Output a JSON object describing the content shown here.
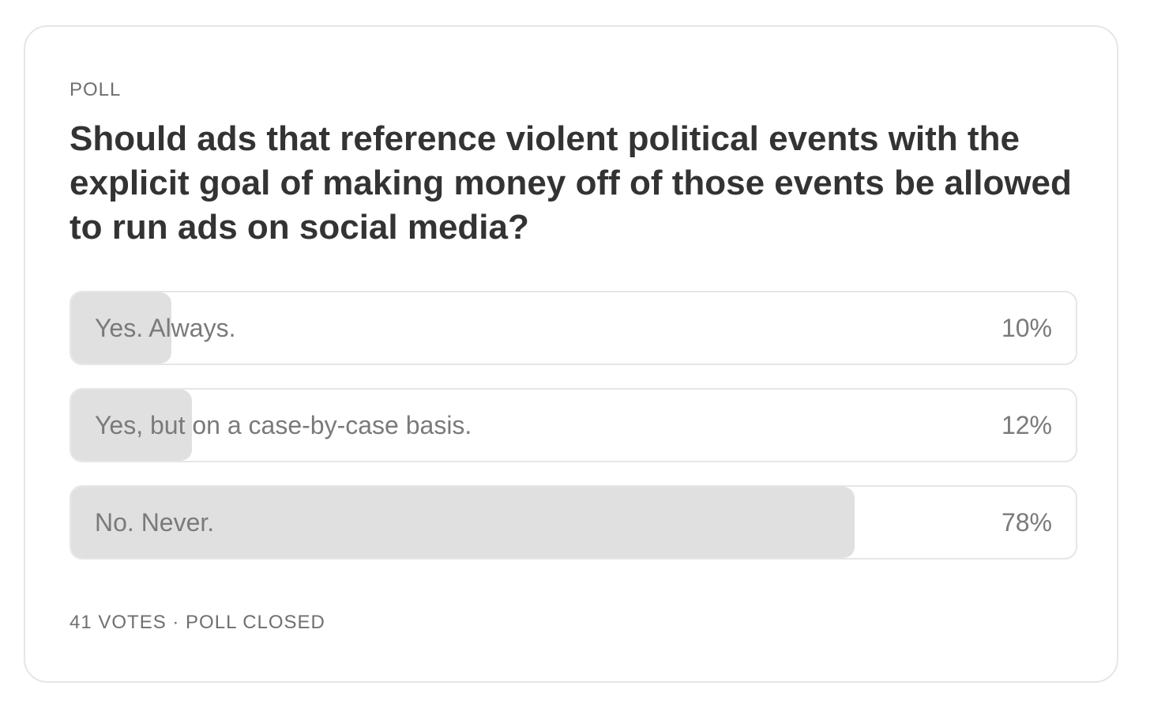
{
  "poll": {
    "label": "POLL",
    "question": "Should ads that reference violent political events with the explicit goal of making money off of those events be allowed to run ads on social media?",
    "options": [
      {
        "label": "Yes. Always.",
        "percent_text": "10%",
        "percent": 10
      },
      {
        "label": "Yes, but on a case-by-case basis.",
        "percent_text": "12%",
        "percent": 12
      },
      {
        "label": "No. Never.",
        "percent_text": "78%",
        "percent": 78
      }
    ],
    "footer": "41 VOTES · POLL CLOSED"
  },
  "colors": {
    "fill": "#e0e0e0",
    "border": "#e6e6e6",
    "question_text": "#333333",
    "muted_text": "#7a7a7a"
  }
}
